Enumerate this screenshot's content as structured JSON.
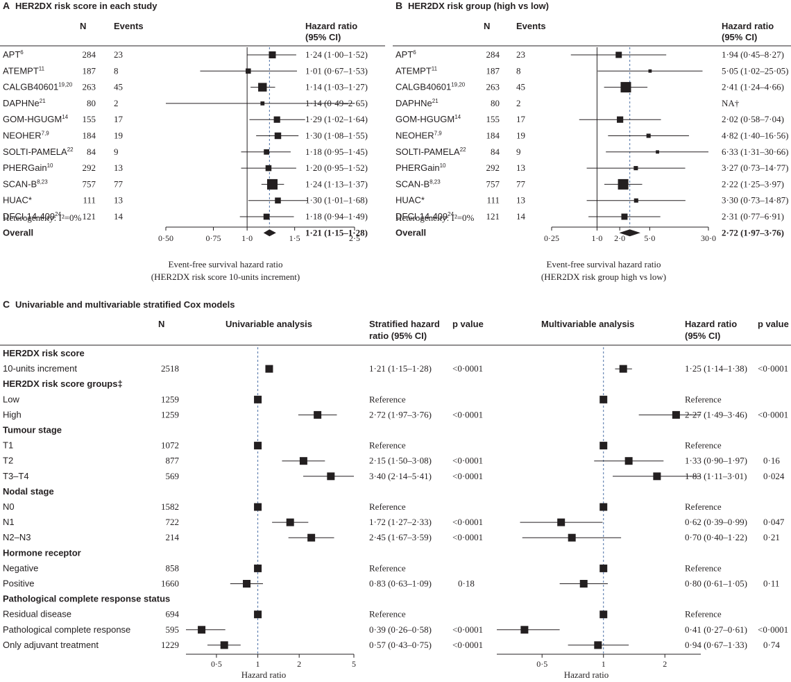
{
  "chart_data": [
    {
      "panel": "A",
      "type": "forest",
      "title": "HER2DX risk score in each study",
      "columns": {
        "n": "N",
        "events": "Events",
        "hr_line1": "Hazard ratio",
        "hr_line2": "(95% CI)"
      },
      "rows": [
        {
          "study": "APT",
          "sup": "6",
          "n": "284",
          "events": "23",
          "hr": 1.24,
          "lo": 1.0,
          "hi": 1.52,
          "ci_text": "1·24 (1·00–1·52)",
          "weight": 23
        },
        {
          "study": "ATEMPT",
          "sup": "11",
          "n": "187",
          "events": "8",
          "hr": 1.01,
          "lo": 0.67,
          "hi": 1.53,
          "ci_text": "1·01 (0·67–1·53)",
          "weight": 8
        },
        {
          "study": "CALGB40601",
          "sup": "19,20",
          "n": "263",
          "events": "45",
          "hr": 1.14,
          "lo": 1.03,
          "hi": 1.27,
          "ci_text": "1·14 (1·03–1·27)",
          "weight": 45
        },
        {
          "study": "DAPHNe",
          "sup": "21",
          "n": "80",
          "events": "2",
          "hr": 1.14,
          "lo": 0.49,
          "hi": 2.65,
          "ci_text": "1·14 (0·49–2·65)",
          "weight": 2
        },
        {
          "study": "GOM-HGUGM",
          "sup": "14",
          "n": "155",
          "events": "17",
          "hr": 1.29,
          "lo": 1.02,
          "hi": 1.64,
          "ci_text": "1·29 (1·02–1·64)",
          "weight": 17
        },
        {
          "study": "NEOHER",
          "sup": "7,9",
          "n": "184",
          "events": "19",
          "hr": 1.3,
          "lo": 1.08,
          "hi": 1.55,
          "ci_text": "1·30 (1·08–1·55)",
          "weight": 19
        },
        {
          "study": "SOLTI-PAMELA",
          "sup": "22",
          "n": "84",
          "events": "9",
          "hr": 1.18,
          "lo": 0.95,
          "hi": 1.45,
          "ci_text": "1·18 (0·95–1·45)",
          "weight": 9
        },
        {
          "study": "PHERGain",
          "sup": "10",
          "n": "292",
          "events": "13",
          "hr": 1.2,
          "lo": 0.95,
          "hi": 1.52,
          "ci_text": "1·20 (0·95–1·52)",
          "weight": 13
        },
        {
          "study": "SCAN-B",
          "sup": "8,23",
          "n": "757",
          "events": "77",
          "hr": 1.24,
          "lo": 1.13,
          "hi": 1.37,
          "ci_text": "1·24 (1·13–1·37)",
          "weight": 77
        },
        {
          "study": "HUAC*",
          "sup": "",
          "n": "111",
          "events": "13",
          "hr": 1.3,
          "lo": 1.01,
          "hi": 1.68,
          "ci_text": "1·30 (1·01–1·68)",
          "weight": 13
        },
        {
          "study": "DFCI-14-409",
          "sup": "24",
          "n": "121",
          "events": "14",
          "hr": 1.18,
          "lo": 0.94,
          "hi": 1.49,
          "ci_text": "1·18 (0·94–1·49)",
          "weight": 14
        }
      ],
      "overall": {
        "label": "Overall",
        "hr": 1.21,
        "lo": 1.15,
        "hi": 1.28,
        "ci_text": "1·21 (1·15–1·28)"
      },
      "heterogeneity": "Heterogeneity: I²=0%",
      "axis": {
        "scale": "log",
        "min": 0.5,
        "max": 2.5,
        "ticks": [
          0.5,
          0.75,
          1.0,
          1.5,
          2.5
        ],
        "tick_labels": [
          "0·50",
          "0·75",
          "1·0",
          "1·5",
          "2·5"
        ],
        "reference": 1.0,
        "dashed_at": 1.21
      },
      "xlabel_line1": "Event-free survival hazard ratio",
      "xlabel_line2": "(HER2DX risk score 10-units increment)"
    },
    {
      "panel": "B",
      "type": "forest",
      "title": "HER2DX risk group (high vs low)",
      "columns": {
        "n": "N",
        "events": "Events",
        "hr_line1": "Hazard ratio",
        "hr_line2": "(95% CI)"
      },
      "rows": [
        {
          "study": "APT",
          "sup": "6",
          "n": "284",
          "events": "23",
          "hr": 1.94,
          "lo": 0.45,
          "hi": 8.27,
          "ci_text": "1·94 (0·45–8·27)",
          "weight": 11
        },
        {
          "study": "ATEMPT",
          "sup": "11",
          "n": "187",
          "events": "8",
          "hr": 5.05,
          "lo": 1.02,
          "hi": 25.05,
          "ci_text": "5·05 (1·02–25·05)",
          "weight": 1
        },
        {
          "study": "CALGB40601",
          "sup": "19,20",
          "n": "263",
          "events": "45",
          "hr": 2.41,
          "lo": 1.24,
          "hi": 4.66,
          "ci_text": "2·41 (1·24–4·66)",
          "weight": 45
        },
        {
          "study": "DAPHNe",
          "sup": "21",
          "n": "80",
          "events": "2",
          "hr": null,
          "lo": null,
          "hi": null,
          "ci_text": "NA†",
          "weight": 0
        },
        {
          "study": "GOM-HGUGM",
          "sup": "14",
          "n": "155",
          "events": "17",
          "hr": 2.02,
          "lo": 0.58,
          "hi": 7.04,
          "ci_text": "2·02 (0·58–7·04)",
          "weight": 12
        },
        {
          "study": "NEOHER",
          "sup": "7,9",
          "n": "184",
          "events": "19",
          "hr": 4.82,
          "lo": 1.4,
          "hi": 16.56,
          "ci_text": "4·82 (1·40–16·56)",
          "weight": 3
        },
        {
          "study": "SOLTI-PAMELA",
          "sup": "22",
          "n": "84",
          "events": "9",
          "hr": 6.33,
          "lo": 1.31,
          "hi": 30.66,
          "ci_text": "6·33 (1·31–30·66)",
          "weight": 1
        },
        {
          "study": "PHERGain",
          "sup": "10",
          "n": "292",
          "events": "13",
          "hr": 3.27,
          "lo": 0.73,
          "hi": 14.77,
          "ci_text": "3·27 (0·73–14·77)",
          "weight": 3
        },
        {
          "study": "SCAN-B",
          "sup": "8,23",
          "n": "757",
          "events": "77",
          "hr": 2.22,
          "lo": 1.25,
          "hi": 3.97,
          "ci_text": "2·22 (1·25–3·97)",
          "weight": 45
        },
        {
          "study": "HUAC*",
          "sup": "",
          "n": "111",
          "events": "13",
          "hr": 3.3,
          "lo": 0.73,
          "hi": 14.87,
          "ci_text": "3·30 (0·73–14·87)",
          "weight": 3
        },
        {
          "study": "DFCI-14-409",
          "sup": "24",
          "n": "121",
          "events": "14",
          "hr": 2.31,
          "lo": 0.77,
          "hi": 6.91,
          "ci_text": "2·31 (0·77–6·91)",
          "weight": 11
        }
      ],
      "overall": {
        "label": "Overall",
        "hr": 2.72,
        "lo": 1.97,
        "hi": 3.76,
        "ci_text": "2·72 (1·97–3·76)"
      },
      "heterogeneity": "Heterogeneity: I²=0%",
      "axis": {
        "scale": "log",
        "min": 0.25,
        "max": 30.0,
        "ticks": [
          0.25,
          1.0,
          2.0,
          5.0,
          30.0
        ],
        "tick_labels": [
          "0·25",
          "1·0",
          "2·0",
          "5·0",
          "30·0"
        ],
        "reference": 1.0,
        "dashed_at": 2.72
      },
      "xlabel_line1": "Event-free survival hazard ratio",
      "xlabel_line2": "(HER2DX risk group high vs low)"
    },
    {
      "panel": "C",
      "type": "forest-table",
      "title": "Univariable and multivariable stratified Cox models",
      "columns": {
        "n": "N",
        "uni": "Univariable analysis",
        "uni_hr_line1": "Stratified hazard",
        "uni_hr_line2": "ratio (95% CI)",
        "uni_p": "p value",
        "multi": "Multivariable analysis",
        "multi_hr_line1": "Hazard ratio",
        "multi_hr_line2": "(95% CI)",
        "multi_p": "p value"
      },
      "rows": [
        {
          "kind": "group",
          "label": "HER2DX risk score"
        },
        {
          "kind": "row",
          "label": "10-units increment",
          "n": "2518",
          "uni": {
            "hr": 1.21,
            "lo": 1.15,
            "hi": 1.28,
            "text": "1·21 (1·15–1·28)",
            "p": "<0·0001"
          },
          "multi": {
            "hr": 1.25,
            "lo": 1.14,
            "hi": 1.38,
            "text": "1·25 (1·14–1·38)",
            "p": "<0·0001"
          }
        },
        {
          "kind": "group",
          "label": "HER2DX risk score groups‡"
        },
        {
          "kind": "row",
          "label": "Low",
          "n": "1259",
          "uni": {
            "hr": 1,
            "lo": null,
            "hi": null,
            "text": "Reference",
            "p": ""
          },
          "multi": {
            "hr": 1,
            "lo": null,
            "hi": null,
            "text": "Reference",
            "p": ""
          }
        },
        {
          "kind": "row",
          "label": "High",
          "n": "1259",
          "uni": {
            "hr": 2.72,
            "lo": 1.97,
            "hi": 3.76,
            "text": "2·72 (1·97–3·76)",
            "p": "<0·0001"
          },
          "multi": {
            "hr": 2.27,
            "lo": 1.49,
            "hi": 3.46,
            "text": "2·27 (1·49–3·46)",
            "p": "<0·0001"
          }
        },
        {
          "kind": "group",
          "label": "Tumour stage"
        },
        {
          "kind": "row",
          "label": "T1",
          "n": "1072",
          "uni": {
            "hr": 1,
            "lo": null,
            "hi": null,
            "text": "Reference",
            "p": ""
          },
          "multi": {
            "hr": 1,
            "lo": null,
            "hi": null,
            "text": "Reference",
            "p": ""
          }
        },
        {
          "kind": "row",
          "label": "T2",
          "n": "877",
          "uni": {
            "hr": 2.15,
            "lo": 1.5,
            "hi": 3.08,
            "text": "2·15 (1·50–3·08)",
            "p": "<0·0001"
          },
          "multi": {
            "hr": 1.33,
            "lo": 0.9,
            "hi": 1.97,
            "text": "1·33 (0·90–1·97)",
            "p": "0·16"
          }
        },
        {
          "kind": "row",
          "label": "T3–T4",
          "n": "569",
          "uni": {
            "hr": 3.4,
            "lo": 2.14,
            "hi": 5.41,
            "text": "3·40 (2·14–5·41)",
            "p": "<0·0001"
          },
          "multi": {
            "hr": 1.83,
            "lo": 1.11,
            "hi": 3.01,
            "text": "1·83 (1·11–3·01)",
            "p": "0·024"
          }
        },
        {
          "kind": "group",
          "label": "Nodal stage"
        },
        {
          "kind": "row",
          "label": "N0",
          "n": "1582",
          "uni": {
            "hr": 1,
            "lo": null,
            "hi": null,
            "text": "Reference",
            "p": ""
          },
          "multi": {
            "hr": 1,
            "lo": null,
            "hi": null,
            "text": "Reference",
            "p": ""
          }
        },
        {
          "kind": "row",
          "label": "N1",
          "n": "722",
          "uni": {
            "hr": 1.72,
            "lo": 1.27,
            "hi": 2.33,
            "text": "1·72 (1·27–2·33)",
            "p": "<0·0001"
          },
          "multi": {
            "hr": 0.62,
            "lo": 0.39,
            "hi": 0.99,
            "text": "0·62 (0·39–0·99)",
            "p": "0·047"
          }
        },
        {
          "kind": "row",
          "label": "N2–N3",
          "n": "214",
          "uni": {
            "hr": 2.45,
            "lo": 1.67,
            "hi": 3.59,
            "text": "2·45 (1·67–3·59)",
            "p": "<0·0001"
          },
          "multi": {
            "hr": 0.7,
            "lo": 0.4,
            "hi": 1.22,
            "text": "0·70 (0·40–1·22)",
            "p": "0·21"
          }
        },
        {
          "kind": "group",
          "label": "Hormone receptor"
        },
        {
          "kind": "row",
          "label": "Negative",
          "n": "858",
          "uni": {
            "hr": 1,
            "lo": null,
            "hi": null,
            "text": "Reference",
            "p": ""
          },
          "multi": {
            "hr": 1,
            "lo": null,
            "hi": null,
            "text": "Reference",
            "p": ""
          }
        },
        {
          "kind": "row",
          "label": "Positive",
          "n": "1660",
          "uni": {
            "hr": 0.83,
            "lo": 0.63,
            "hi": 1.09,
            "text": "0·83 (0·63–1·09)",
            "p": "0·18"
          },
          "multi": {
            "hr": 0.8,
            "lo": 0.61,
            "hi": 1.05,
            "text": "0·80 (0·61–1·05)",
            "p": "0·11"
          }
        },
        {
          "kind": "group",
          "label": "Pathological complete response status"
        },
        {
          "kind": "row",
          "label": "Residual disease",
          "n": "694",
          "uni": {
            "hr": 1,
            "lo": null,
            "hi": null,
            "text": "Reference",
            "p": ""
          },
          "multi": {
            "hr": 1,
            "lo": null,
            "hi": null,
            "text": "Reference",
            "p": ""
          }
        },
        {
          "kind": "row",
          "label": "Pathological complete response",
          "n": "595",
          "uni": {
            "hr": 0.39,
            "lo": 0.26,
            "hi": 0.58,
            "text": "0·39 (0·26–0·58)",
            "p": "<0·0001"
          },
          "multi": {
            "hr": 0.41,
            "lo": 0.27,
            "hi": 0.61,
            "text": "0·41 (0·27–0·61)",
            "p": "<0·0001"
          }
        },
        {
          "kind": "row",
          "label": "Only adjuvant treatment",
          "n": "1229",
          "uni": {
            "hr": 0.57,
            "lo": 0.43,
            "hi": 0.75,
            "text": "0·57 (0·43–0·75)",
            "p": "<0·0001"
          },
          "multi": {
            "hr": 0.94,
            "lo": 0.67,
            "hi": 1.33,
            "text": "0·94 (0·67–1·33)",
            "p": "0·74"
          }
        }
      ],
      "uni_axis": {
        "scale": "log",
        "min": 0.3,
        "max": 5,
        "ticks": [
          0.5,
          1,
          2,
          5
        ],
        "tick_labels": [
          "0·5",
          "1",
          "2",
          "5"
        ],
        "reference": 1
      },
      "multi_axis": {
        "scale": "log",
        "min": 0.3,
        "max": 3,
        "ticks": [
          0.5,
          1,
          2
        ],
        "tick_labels": [
          "0·5",
          "1",
          "2"
        ],
        "reference": 1
      },
      "xlabel": "Hazard ratio"
    }
  ]
}
